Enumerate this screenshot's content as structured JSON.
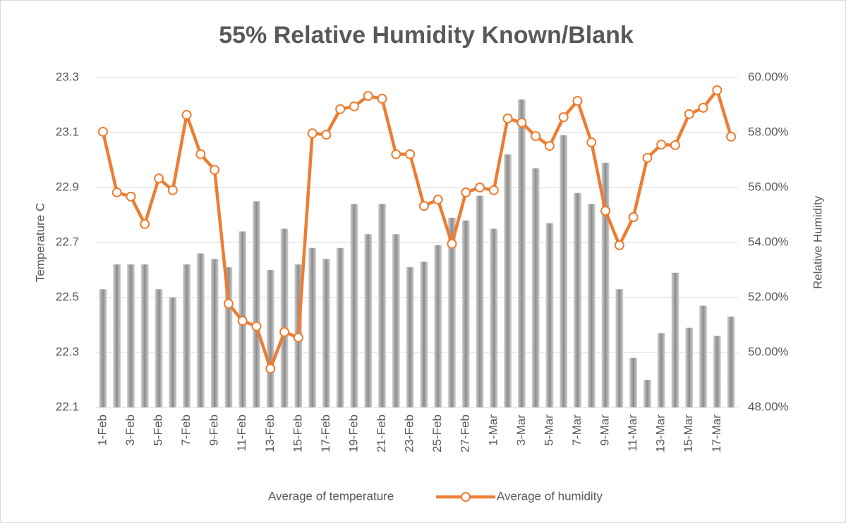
{
  "chart_data": {
    "type": "bar-line",
    "title": "55% Relative Humidity Known/Blank",
    "y_label": "Temperature C",
    "y2_label": "Relative Humidity",
    "categories": [
      "1-Feb",
      null,
      "3-Feb",
      null,
      "5-Feb",
      null,
      "7-Feb",
      null,
      "9-Feb",
      null,
      "11-Feb",
      null,
      "13-Feb",
      null,
      "15-Feb",
      null,
      "17-Feb",
      null,
      "19-Feb",
      null,
      "21-Feb",
      null,
      "23-Feb",
      null,
      "25-Feb",
      null,
      "27-Feb",
      null,
      "1-Mar",
      null,
      "3-Mar",
      null,
      "5-Mar",
      null,
      "7-Mar",
      null,
      "9-Mar",
      null,
      "11-Mar",
      null,
      "13-Mar",
      null,
      "15-Mar",
      null,
      "17-Mar",
      null
    ],
    "series": [
      {
        "name": "Average of temperature",
        "type": "bar",
        "color": "#a5a5a5",
        "values": [
          22.53,
          22.62,
          22.62,
          22.62,
          22.53,
          22.5,
          22.62,
          22.66,
          22.64,
          22.61,
          22.74,
          22.85,
          22.6,
          22.75,
          22.62,
          22.68,
          22.64,
          22.68,
          22.84,
          22.73,
          22.84,
          22.73,
          22.61,
          22.63,
          22.69,
          22.79,
          22.78,
          22.87,
          22.75,
          23.02,
          23.22,
          22.97,
          22.77,
          23.09,
          22.88,
          22.84,
          22.99,
          22.53,
          22.28,
          22.2,
          22.37,
          22.59,
          22.39,
          22.47,
          22.36,
          22.43
        ]
      },
      {
        "name": "Average of humidity",
        "type": "line",
        "axis": "y2",
        "color": "#ed7d31",
        "values": [
          58.03,
          55.82,
          55.67,
          54.67,
          56.33,
          55.9,
          58.64,
          57.21,
          56.64,
          51.77,
          51.15,
          50.95,
          49.41,
          50.74,
          50.54,
          57.97,
          57.92,
          58.85,
          58.95,
          59.33,
          59.23,
          57.21,
          57.21,
          55.33,
          55.56,
          53.95,
          55.82,
          56.0,
          55.9,
          58.51,
          58.36,
          57.87,
          57.51,
          58.56,
          59.15,
          57.64,
          55.15,
          53.9,
          54.92,
          57.08,
          57.56,
          57.54,
          58.67,
          58.9,
          59.54,
          57.85
        ]
      }
    ],
    "ylim": [
      22.1,
      23.3
    ],
    "yticks": [
      22.1,
      22.3,
      22.5,
      22.7,
      22.9,
      23.1,
      23.3
    ],
    "y2lim": [
      48,
      60
    ],
    "y2ticks": [
      {
        "value": 48,
        "label": "48.00%"
      },
      {
        "value": 50,
        "label": "50.00%"
      },
      {
        "value": 52,
        "label": "52.00%"
      },
      {
        "value": 54,
        "label": "54.00%"
      },
      {
        "value": 56,
        "label": "56.00%"
      },
      {
        "value": 58,
        "label": "58.00%"
      },
      {
        "value": 60,
        "label": "60.00%"
      }
    ],
    "grid": true,
    "legend": "bottom"
  }
}
